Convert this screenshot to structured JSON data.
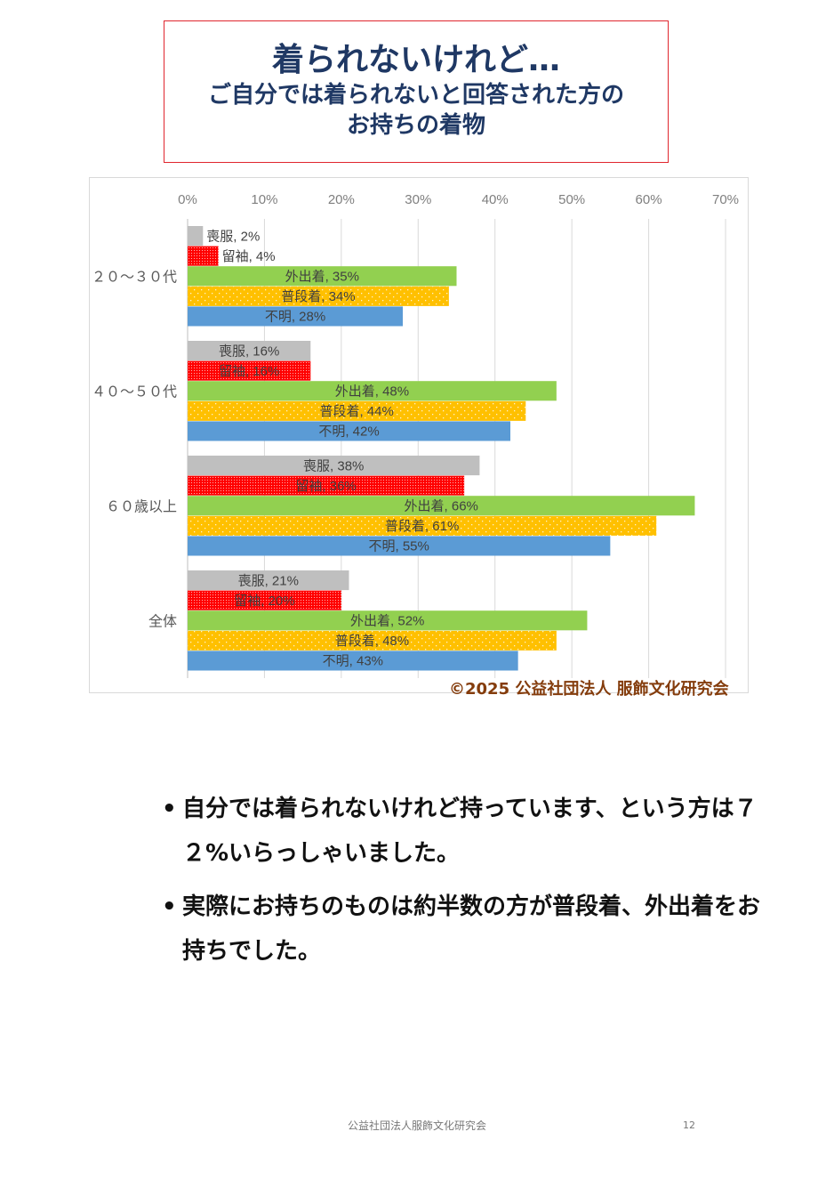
{
  "title": {
    "line1": "着られないけれど…",
    "line2": "ご自分では着られないと回答された方の",
    "line3": "お持ちの着物"
  },
  "chart_data": {
    "type": "bar",
    "orientation": "horizontal",
    "categories": [
      "２０～３０代",
      "４０～５０代",
      "６０歳以上",
      "全体"
    ],
    "series": [
      {
        "name": "喪服",
        "values": [
          2,
          16,
          38,
          21
        ],
        "color": "#bfbfbf",
        "pattern": "solid"
      },
      {
        "name": "留袖",
        "values": [
          4,
          16,
          36,
          20
        ],
        "color": "#ff0000",
        "pattern": "dotted-dense"
      },
      {
        "name": "外出着",
        "values": [
          35,
          48,
          66,
          52
        ],
        "color": "#92d050",
        "pattern": "solid"
      },
      {
        "name": "普段着",
        "values": [
          34,
          44,
          61,
          48
        ],
        "color": "#ffc000",
        "pattern": "dotted-sparse"
      },
      {
        "name": "不明",
        "values": [
          28,
          42,
          55,
          43
        ],
        "color": "#5b9bd5",
        "pattern": "solid"
      }
    ],
    "xlim": [
      0,
      70
    ],
    "xticks": [
      "0%",
      "10%",
      "20%",
      "30%",
      "40%",
      "50%",
      "60%",
      "70%"
    ],
    "axis_position": "top",
    "grid": true,
    "data_labels": "series name, value%"
  },
  "copyright": "©2025 公益社団法人 服飾文化研究会",
  "bullets": [
    "自分では着られないけれど持っています、という方は７２%いらっしゃいました。",
    "実際にお持ちのものは約半数の方が普段着、外出着をお持ちでした。"
  ],
  "footer": {
    "org": "公益社団法人服飾文化研究会",
    "page": "12"
  }
}
